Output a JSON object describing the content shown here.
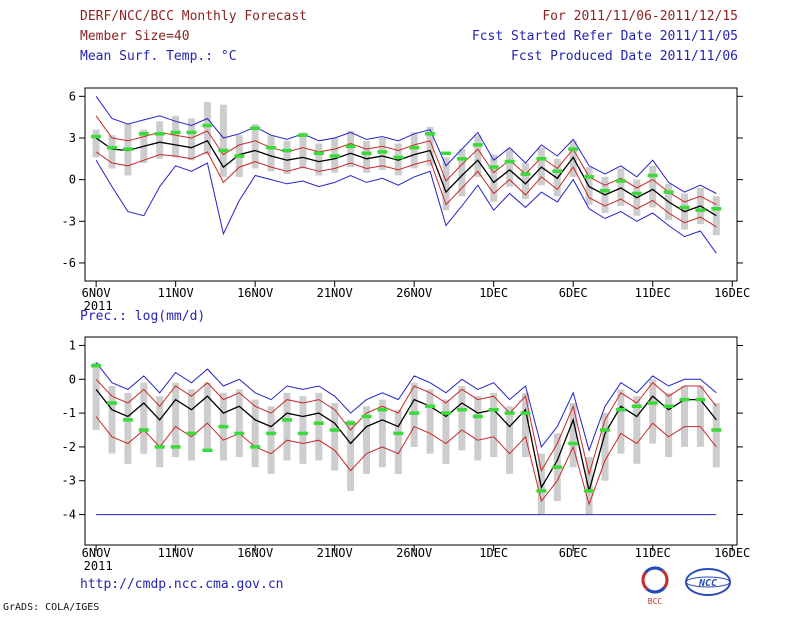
{
  "header": {
    "title": "DERF/NCC/BCC Monthly Forecast",
    "member_size": "Member Size=40",
    "period": "For 2011/11/06-2011/12/15",
    "refer_date": "Fcst Started Refer Date 2011/11/05",
    "produced_date": "Fcst Produced Date 2011/11/06"
  },
  "footer": {
    "url": "http://cmdp.ncc.cma.gov.cn",
    "grads_credit": "GrADS: COLA/IGES",
    "logos": [
      {
        "name": "bcc-logo",
        "label": "BCC"
      },
      {
        "name": "ncc-logo",
        "label": "NCC"
      }
    ]
  },
  "colors": {
    "title_text": "#8b2424",
    "info_text": "#2424b0",
    "spread_bar": "#cdcdcd",
    "max_min_line": "#2323c8",
    "std_line": "#c82828",
    "mean_line": "#000000",
    "obs_dash": "#3ada3a"
  },
  "chart_data": [
    {
      "name": "temperature-chart",
      "type": "line",
      "title": "Mean Surf. Temp.: °C",
      "ylabel": "",
      "xlabel": "",
      "grid": false,
      "legend": "none",
      "ylim": [
        -7.3,
        6.6
      ],
      "xlim": [
        -0.7,
        40.3
      ],
      "yticks": [
        -6,
        -3,
        0,
        3,
        6
      ],
      "x_tick_positions": [
        0,
        5,
        10,
        15,
        20,
        25,
        30,
        35,
        40
      ],
      "x_tick_labels": [
        "6NOV",
        "11NOV",
        "16NOV",
        "21NOV",
        "26NOV",
        "1DEC",
        "6DEC",
        "11DEC",
        "16DEC"
      ],
      "x_first_tick_sub_label": "2011",
      "series": [
        {
          "name": "ensemble-spread-bars",
          "type": "bar",
          "color": "#cdcdcd",
          "ranges": [
            [
              1.6,
              3.6
            ],
            [
              0.8,
              3.2
            ],
            [
              0.3,
              4.0
            ],
            [
              1.2,
              3.6
            ],
            [
              1.5,
              4.2
            ],
            [
              1.6,
              4.6
            ],
            [
              1.4,
              4.4
            ],
            [
              1.8,
              5.6
            ],
            [
              0.2,
              5.4
            ],
            [
              0.2,
              3.2
            ],
            [
              0.8,
              4.0
            ],
            [
              0.6,
              3.2
            ],
            [
              0.4,
              2.8
            ],
            [
              0.8,
              3.4
            ],
            [
              0.3,
              2.6
            ],
            [
              0.5,
              3.0
            ],
            [
              0.9,
              3.5
            ],
            [
              0.5,
              2.8
            ],
            [
              0.7,
              3.0
            ],
            [
              0.3,
              2.6
            ],
            [
              0.8,
              3.4
            ],
            [
              1.0,
              3.8
            ],
            [
              -2.2,
              1.6
            ],
            [
              -1.2,
              2.2
            ],
            [
              0.2,
              3.2
            ],
            [
              -1.6,
              1.8
            ],
            [
              -0.5,
              2.2
            ],
            [
              -1.4,
              1.2
            ],
            [
              -0.4,
              2.3
            ],
            [
              -1.2,
              1.5
            ],
            [
              0.2,
              2.8
            ],
            [
              -1.8,
              0.9
            ],
            [
              -2.4,
              0.2
            ],
            [
              -1.9,
              0.8
            ],
            [
              -2.6,
              0.0
            ],
            [
              -2.0,
              1.0
            ],
            [
              -2.9,
              -0.3
            ],
            [
              -3.6,
              -1.0
            ],
            [
              -3.2,
              -0.6
            ],
            [
              -4.0,
              -1.2
            ]
          ]
        },
        {
          "name": "ensemble-max",
          "type": "line",
          "color": "#2323c8",
          "width": 1,
          "values": [
            6.0,
            4.4,
            4.0,
            4.3,
            4.6,
            4.2,
            3.9,
            4.4,
            3.0,
            3.3,
            3.8,
            3.2,
            2.9,
            3.3,
            2.8,
            3.0,
            3.4,
            2.9,
            3.1,
            2.8,
            3.3,
            3.6,
            1.0,
            2.2,
            3.4,
            1.4,
            2.3,
            1.2,
            2.5,
            1.7,
            2.9,
            1.0,
            0.4,
            1.0,
            0.2,
            1.4,
            -0.2,
            -0.9,
            -0.4,
            -1.0
          ]
        },
        {
          "name": "mean-plus-sd",
          "type": "line",
          "color": "#c82828",
          "width": 1,
          "values": [
            4.6,
            3.0,
            2.8,
            3.1,
            3.4,
            3.2,
            3.0,
            3.5,
            1.8,
            2.5,
            2.8,
            2.3,
            2.0,
            2.3,
            2.0,
            2.2,
            2.6,
            2.2,
            2.4,
            2.1,
            2.5,
            2.8,
            -0.1,
            1.1,
            2.2,
            0.5,
            1.4,
            0.4,
            1.6,
            0.8,
            2.2,
            0.2,
            -0.4,
            0.1,
            -0.6,
            0.0,
            -0.9,
            -1.6,
            -1.2,
            -1.8
          ]
        },
        {
          "name": "ensemble-mean",
          "type": "line",
          "color": "#000000",
          "width": 1.3,
          "values": [
            3.0,
            2.2,
            2.1,
            2.4,
            2.7,
            2.5,
            2.3,
            2.8,
            0.9,
            1.8,
            2.1,
            1.7,
            1.4,
            1.6,
            1.3,
            1.5,
            1.9,
            1.5,
            1.7,
            1.4,
            1.8,
            2.1,
            -0.9,
            0.3,
            1.4,
            -0.2,
            0.7,
            -0.3,
            0.9,
            0.1,
            1.6,
            -0.5,
            -1.1,
            -0.6,
            -1.3,
            -0.7,
            -1.6,
            -2.3,
            -1.9,
            -2.6
          ]
        },
        {
          "name": "mean-minus-sd",
          "type": "line",
          "color": "#c82828",
          "width": 1,
          "values": [
            2.0,
            1.2,
            1.0,
            1.4,
            1.8,
            1.7,
            1.5,
            2.0,
            -0.2,
            0.9,
            1.3,
            0.9,
            0.6,
            0.9,
            0.6,
            0.8,
            1.2,
            0.8,
            1.0,
            0.7,
            1.1,
            1.4,
            -1.8,
            -0.6,
            0.6,
            -1.0,
            0.0,
            -1.1,
            0.2,
            -0.7,
            0.9,
            -1.3,
            -1.9,
            -1.4,
            -2.1,
            -1.5,
            -2.4,
            -3.1,
            -2.7,
            -3.4
          ]
        },
        {
          "name": "ensemble-min",
          "type": "line",
          "color": "#2323c8",
          "width": 1,
          "values": [
            1.4,
            -0.5,
            -2.3,
            -2.6,
            -0.5,
            1.0,
            0.6,
            1.2,
            -3.9,
            -1.5,
            0.3,
            0.0,
            -0.3,
            -0.1,
            -0.5,
            -0.2,
            0.3,
            -0.2,
            0.1,
            -0.4,
            0.2,
            0.6,
            -3.3,
            -1.9,
            -0.4,
            -2.2,
            -1.0,
            -2.0,
            -0.9,
            -1.6,
            0.0,
            -2.1,
            -2.8,
            -2.3,
            -3.0,
            -2.4,
            -3.3,
            -4.1,
            -3.7,
            -5.3
          ]
        },
        {
          "name": "observation-dashes",
          "type": "dash",
          "color": "#3ada3a",
          "values": [
            3.1,
            2.3,
            2.2,
            3.3,
            3.3,
            3.4,
            3.4,
            3.9,
            2.1,
            1.7,
            3.7,
            2.3,
            2.1,
            3.2,
            1.9,
            1.7,
            2.4,
            1.9,
            2.0,
            1.6,
            2.3,
            3.3,
            1.9,
            1.5,
            2.5,
            0.9,
            1.3,
            0.4,
            1.5,
            0.6,
            2.2,
            0.2,
            -0.8,
            -0.1,
            -1.0,
            0.3,
            -0.9,
            -2.0,
            -2.2,
            -2.1
          ]
        }
      ]
    },
    {
      "name": "precipitation-chart",
      "type": "line",
      "title": "Prec.: log(mm/d)",
      "ylabel": "",
      "xlabel": "",
      "grid": false,
      "legend": "none",
      "ylim": [
        -4.9,
        1.25
      ],
      "xlim": [
        -0.7,
        40.3
      ],
      "yticks": [
        -4,
        -3,
        -2,
        -1,
        0,
        1
      ],
      "x_tick_positions": [
        0,
        5,
        10,
        15,
        20,
        25,
        30,
        35,
        40
      ],
      "x_tick_labels": [
        "6NOV",
        "11NOV",
        "16NOV",
        "21NOV",
        "26NOV",
        "1DEC",
        "6DEC",
        "11DEC",
        "16DEC"
      ],
      "x_first_tick_sub_label": "2011",
      "series": [
        {
          "name": "ensemble-spread-bars",
          "type": "bar",
          "color": "#cdcdcd",
          "ranges": [
            [
              -1.5,
              0.5
            ],
            [
              -2.2,
              -0.2
            ],
            [
              -2.5,
              -0.4
            ],
            [
              -2.2,
              -0.1
            ],
            [
              -2.6,
              -0.5
            ],
            [
              -2.3,
              -0.1
            ],
            [
              -2.4,
              -0.3
            ],
            [
              -2.1,
              -0.1
            ],
            [
              -2.4,
              -0.4
            ],
            [
              -2.3,
              -0.3
            ],
            [
              -2.6,
              -0.6
            ],
            [
              -2.8,
              -0.8
            ],
            [
              -2.4,
              -0.4
            ],
            [
              -2.5,
              -0.5
            ],
            [
              -2.4,
              -0.4
            ],
            [
              -2.7,
              -0.7
            ],
            [
              -3.3,
              -1.2
            ],
            [
              -2.8,
              -0.8
            ],
            [
              -2.6,
              -0.6
            ],
            [
              -2.8,
              -0.9
            ],
            [
              -2.0,
              -0.1
            ],
            [
              -2.2,
              -0.3
            ],
            [
              -2.5,
              -0.6
            ],
            [
              -2.1,
              -0.2
            ],
            [
              -2.4,
              -0.5
            ],
            [
              -2.3,
              -0.4
            ],
            [
              -2.8,
              -0.8
            ],
            [
              -2.3,
              -0.4
            ],
            [
              -4.0,
              -2.2
            ],
            [
              -3.6,
              -1.6
            ],
            [
              -2.6,
              -0.7
            ],
            [
              -4.0,
              -2.3
            ],
            [
              -3.0,
              -1.0
            ],
            [
              -2.2,
              -0.3
            ],
            [
              -2.5,
              -0.5
            ],
            [
              -1.9,
              0.0
            ],
            [
              -2.3,
              -0.4
            ],
            [
              -2.0,
              -0.2
            ],
            [
              -2.0,
              -0.2
            ],
            [
              -2.6,
              -0.7
            ]
          ]
        },
        {
          "name": "ensemble-max",
          "type": "line",
          "color": "#2323c8",
          "width": 1,
          "values": [
            0.5,
            -0.1,
            -0.3,
            0.1,
            -0.4,
            0.2,
            -0.1,
            0.3,
            -0.2,
            0.0,
            -0.4,
            -0.6,
            -0.2,
            -0.3,
            -0.2,
            -0.5,
            -1.0,
            -0.6,
            -0.4,
            -0.6,
            0.1,
            -0.1,
            -0.4,
            0.0,
            -0.3,
            -0.1,
            -0.6,
            -0.2,
            -2.0,
            -1.4,
            -0.4,
            -2.1,
            -0.8,
            -0.1,
            -0.4,
            0.1,
            -0.2,
            0.0,
            0.0,
            -0.4
          ]
        },
        {
          "name": "mean-plus-sd",
          "type": "line",
          "color": "#c82828",
          "width": 1,
          "values": [
            0.0,
            -0.5,
            -0.7,
            -0.3,
            -0.8,
            -0.2,
            -0.5,
            -0.1,
            -0.6,
            -0.4,
            -0.8,
            -1.0,
            -0.6,
            -0.7,
            -0.6,
            -0.9,
            -1.5,
            -1.0,
            -0.8,
            -1.0,
            -0.2,
            -0.4,
            -0.7,
            -0.3,
            -0.6,
            -0.5,
            -1.0,
            -0.5,
            -2.7,
            -1.9,
            -0.8,
            -2.8,
            -1.2,
            -0.4,
            -0.7,
            -0.1,
            -0.5,
            -0.2,
            -0.2,
            -0.8
          ]
        },
        {
          "name": "ensemble-mean",
          "type": "line",
          "color": "#000000",
          "width": 1.3,
          "values": [
            -0.3,
            -0.9,
            -1.1,
            -0.7,
            -1.2,
            -0.6,
            -0.9,
            -0.5,
            -1.0,
            -0.8,
            -1.2,
            -1.4,
            -1.0,
            -1.1,
            -1.0,
            -1.3,
            -1.9,
            -1.4,
            -1.2,
            -1.4,
            -0.6,
            -0.8,
            -1.1,
            -0.7,
            -1.0,
            -0.9,
            -1.4,
            -0.9,
            -3.2,
            -2.4,
            -1.2,
            -3.3,
            -1.6,
            -0.8,
            -1.1,
            -0.5,
            -0.9,
            -0.6,
            -0.6,
            -1.2
          ]
        },
        {
          "name": "mean-minus-sd",
          "type": "line",
          "color": "#c82828",
          "width": 1,
          "values": [
            -1.1,
            -1.7,
            -1.9,
            -1.5,
            -2.0,
            -1.4,
            -1.7,
            -1.3,
            -1.8,
            -1.6,
            -2.0,
            -2.2,
            -1.8,
            -1.9,
            -1.8,
            -2.1,
            -2.7,
            -2.2,
            -2.0,
            -2.2,
            -1.4,
            -1.6,
            -1.9,
            -1.5,
            -1.8,
            -1.7,
            -2.2,
            -1.7,
            -3.6,
            -3.0,
            -2.0,
            -3.7,
            -2.4,
            -1.6,
            -1.9,
            -1.3,
            -1.7,
            -1.4,
            -1.4,
            -2.0
          ]
        },
        {
          "name": "ensemble-min",
          "type": "line",
          "color": "#2323c8",
          "width": 1,
          "values": [
            -4.0,
            -4.0,
            -4.0,
            -4.0,
            -4.0,
            -4.0,
            -4.0,
            -4.0,
            -4.0,
            -4.0,
            -4.0,
            -4.0,
            -4.0,
            -4.0,
            -4.0,
            -4.0,
            -4.0,
            -4.0,
            -4.0,
            -4.0,
            -4.0,
            -4.0,
            -4.0,
            -4.0,
            -4.0,
            -4.0,
            -4.0,
            -4.0,
            -4.0,
            -4.0,
            -4.0,
            -4.0,
            -4.0,
            -4.0,
            -4.0,
            -4.0,
            -4.0,
            -4.0,
            -4.0,
            -4.0
          ]
        },
        {
          "name": "observation-dashes",
          "type": "dash",
          "color": "#3ada3a",
          "values": [
            0.4,
            -0.7,
            -1.2,
            -1.5,
            -2.0,
            -2.0,
            -1.6,
            -2.1,
            -1.4,
            -1.6,
            -2.0,
            -1.6,
            -1.2,
            -1.6,
            -1.3,
            -1.5,
            -1.3,
            -1.1,
            -0.9,
            -1.6,
            -1.0,
            -0.8,
            -1.0,
            -0.9,
            -1.1,
            -0.9,
            -1.0,
            -1.0,
            -3.3,
            -2.6,
            -1.9,
            -3.3,
            -1.5,
            -0.9,
            -0.8,
            -0.7,
            -0.8,
            -0.6,
            -0.6,
            -1.5
          ]
        }
      ]
    }
  ]
}
